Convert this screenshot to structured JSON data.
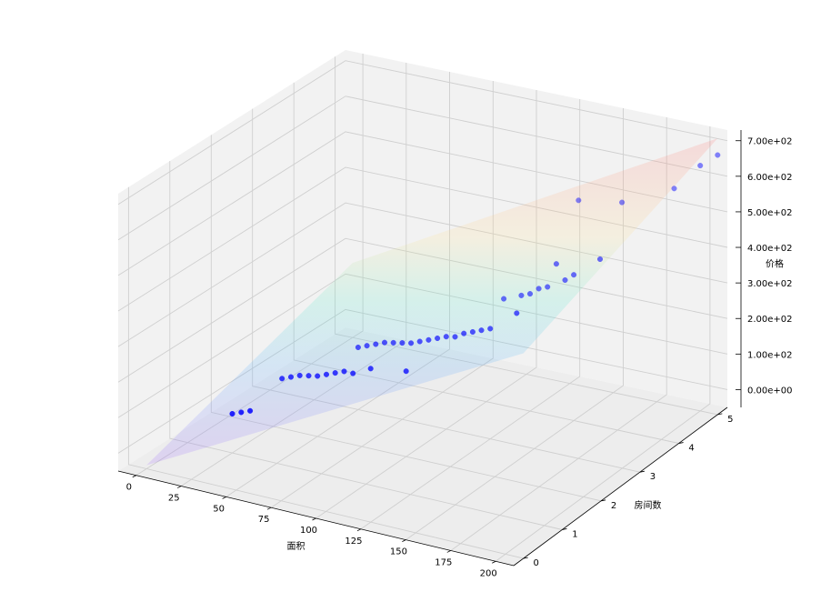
{
  "chart_data": {
    "type": "scatter3d",
    "title": "",
    "xlabel": "面积",
    "ylabel": "房间数",
    "zlabel": "价格",
    "xlim": [
      -10,
      210
    ],
    "ylim": [
      -0.25,
      5.25
    ],
    "zlim": [
      -50,
      730
    ],
    "x_ticks": [
      0,
      25,
      50,
      75,
      100,
      125,
      150,
      175,
      200
    ],
    "y_ticks": [
      0,
      1,
      2,
      3,
      4,
      5
    ],
    "z_ticks": [
      0,
      100,
      200,
      300,
      400,
      500,
      600,
      700
    ],
    "x_tick_labels": [
      "0",
      "25",
      "50",
      "75",
      "100",
      "125",
      "150",
      "175",
      "200"
    ],
    "y_tick_labels": [
      "0",
      "1",
      "2",
      "3",
      "4",
      "5"
    ],
    "z_tick_labels": [
      "0.00e+00",
      "1.00e+02",
      "2.00e+02",
      "3.00e+02",
      "4.00e+02",
      "5.00e+02",
      "6.00e+02",
      "7.00e+02"
    ],
    "grid": true,
    "fitted_plane": {
      "intercept": -40,
      "x_coef": 2.7,
      "y_coef": 40,
      "colormap": "rainbow",
      "opacity": 0.18
    },
    "series": [
      {
        "color": "#0000ff",
        "points": [
          [
            25,
            1,
            60
          ],
          [
            30,
            1,
            70
          ],
          [
            35,
            1,
            80
          ],
          [
            30,
            2,
            90
          ],
          [
            35,
            2,
            100
          ],
          [
            40,
            2,
            110
          ],
          [
            45,
            2,
            115
          ],
          [
            50,
            2,
            120
          ],
          [
            50,
            3,
            125
          ],
          [
            55,
            2,
            130
          ],
          [
            55,
            3,
            135
          ],
          [
            60,
            2,
            140
          ],
          [
            60,
            3,
            145
          ],
          [
            65,
            2,
            150
          ],
          [
            65,
            3,
            155
          ],
          [
            70,
            3,
            160
          ],
          [
            70,
            2,
            150
          ],
          [
            75,
            3,
            165
          ],
          [
            80,
            3,
            170
          ],
          [
            80,
            2,
            175
          ],
          [
            85,
            3,
            180
          ],
          [
            90,
            3,
            190
          ],
          [
            95,
            3,
            200
          ],
          [
            100,
            3,
            210
          ],
          [
            100,
            2,
            190
          ],
          [
            105,
            3,
            215
          ],
          [
            110,
            3,
            230
          ],
          [
            110,
            4,
            250
          ],
          [
            115,
            3,
            240
          ],
          [
            120,
            3,
            250
          ],
          [
            120,
            4,
            270
          ],
          [
            125,
            3,
            260
          ],
          [
            125,
            4,
            280
          ],
          [
            130,
            4,
            300
          ],
          [
            135,
            4,
            310
          ],
          [
            140,
            3,
            320
          ],
          [
            140,
            4,
            380
          ],
          [
            145,
            4,
            340
          ],
          [
            150,
            4,
            360
          ],
          [
            130,
            5,
            470
          ],
          [
            155,
            5,
            490
          ],
          [
            165,
            4,
            420
          ],
          [
            185,
            5,
            560
          ],
          [
            200,
            5,
            640
          ],
          [
            210,
            5,
            680
          ]
        ]
      }
    ]
  }
}
